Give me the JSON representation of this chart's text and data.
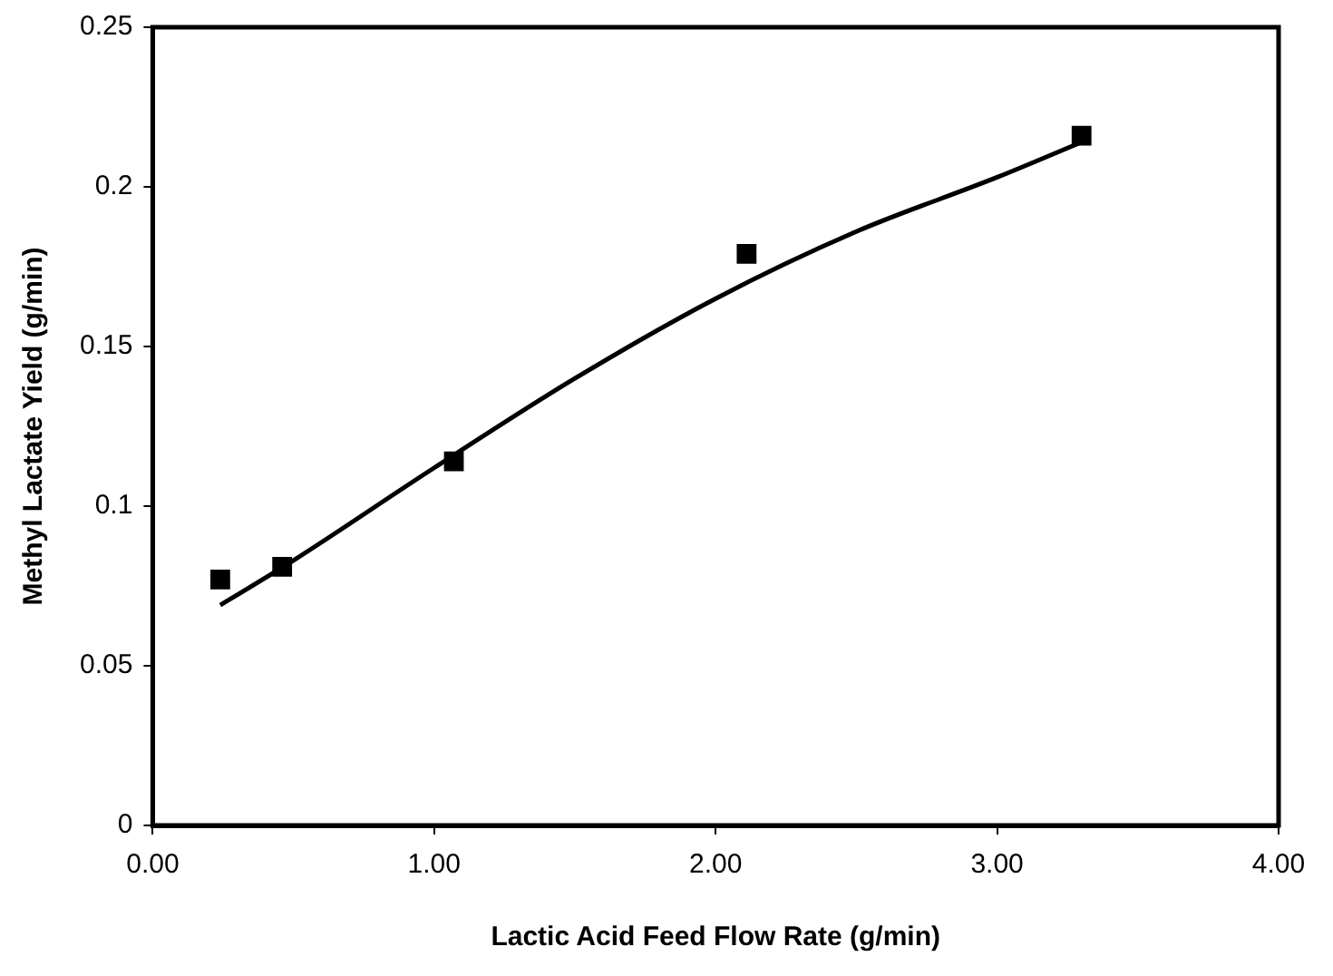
{
  "chart_data": {
    "type": "scatter",
    "xlabel": "Lactic Acid Feed Flow Rate (g/min)",
    "ylabel": "Methyl Lactate Yield (g/min)",
    "xlim": [
      0,
      4
    ],
    "xticks": [
      {
        "value": 0,
        "label": "0.00"
      },
      {
        "value": 1,
        "label": "1.00"
      },
      {
        "value": 2,
        "label": "2.00"
      },
      {
        "value": 3,
        "label": "3.00"
      },
      {
        "value": 4,
        "label": "4.00"
      }
    ],
    "ylim": [
      0,
      0.25
    ],
    "yticks": [
      0,
      0.05,
      0.1,
      0.15,
      0.2,
      0.25
    ],
    "grid": false,
    "legend": false,
    "marker": "square",
    "series": [
      {
        "color": "#000000",
        "x": [
          0.24,
          0.46,
          1.07,
          2.11,
          3.3
        ],
        "values": [
          0.077,
          0.081,
          0.114,
          0.179,
          0.216
        ]
      },
      {
        "type": "line",
        "color": "#000000",
        "marker": "none",
        "line_style": "solid",
        "x": [
          0.24,
          0.5,
          1.0,
          1.5,
          2.0,
          2.5,
          3.0,
          3.3
        ],
        "values": [
          0.069,
          0.083,
          0.112,
          0.14,
          0.165,
          0.186,
          0.203,
          0.214
        ]
      }
    ]
  }
}
